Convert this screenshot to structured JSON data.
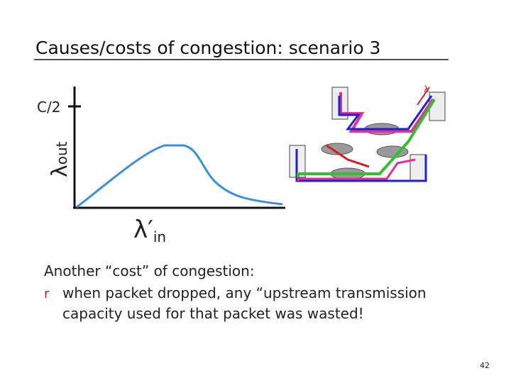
{
  "title": "Causes/costs of congestion: scenario 3",
  "plot": {
    "tick_label": "C/2",
    "y_label": {
      "symbol": "λ",
      "subscript": "out"
    },
    "x_label": {
      "symbol": "λ′",
      "subscript": "in"
    }
  },
  "network": {
    "label": "λ"
  },
  "body": {
    "lead": "Another “cost” of congestion:",
    "bullet": "r",
    "item": [
      "when packet dropped, any “upstream transmission",
      "capacity used for that packet was wasted!"
    ]
  },
  "page_number": "42"
}
